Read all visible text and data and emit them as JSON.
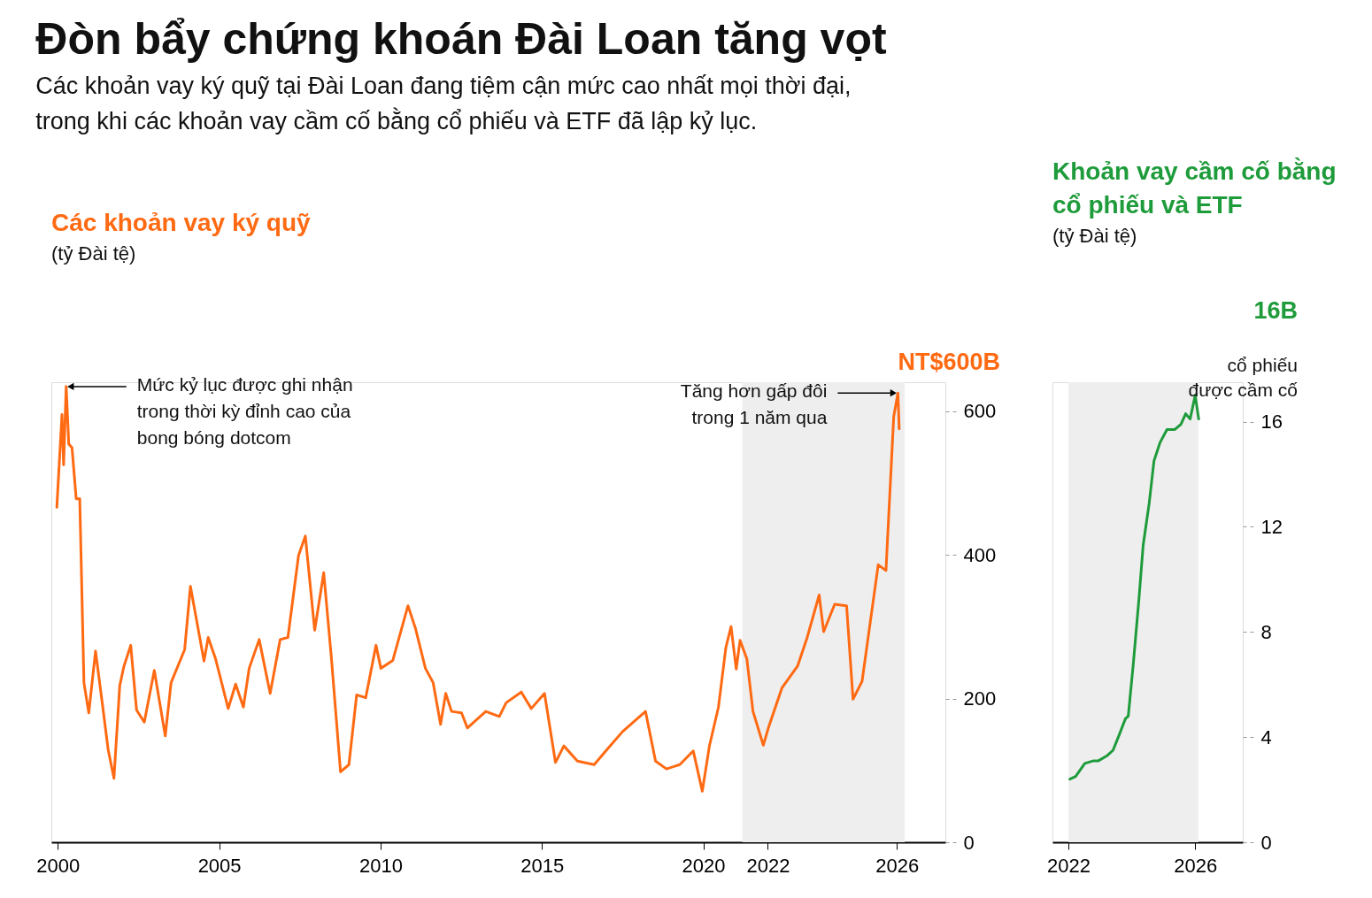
{
  "chart_data": [
    {
      "type": "line",
      "title": "Đòn bẩy chứng khoán Đài Loan tăng vọt",
      "subtitle": "Các khoản vay ký quỹ tại Đài Loan đang tiệm cận mức cao nhất mọi thời đại, trong khi các khoản vay cầm cố bằng cổ phiếu và ETF đã lập kỷ lục.",
      "ylabel": "(tỷ Đài tệ)",
      "x": [
        1999.97,
        2000.13,
        2000.18,
        2000.26,
        2000.34,
        2000.44,
        2000.57,
        2000.68,
        2000.81,
        2000.96,
        2001.17,
        2001.38,
        2001.56,
        2001.74,
        2001.92,
        2002.05,
        2002.26,
        2002.44,
        2002.68,
        2002.99,
        2003.33,
        2003.51,
        2003.93,
        2004.11,
        2004.53,
        2004.66,
        2004.89,
        2005.28,
        2005.51,
        2005.75,
        2005.93,
        2006.24,
        2006.58,
        2006.89,
        2007.13,
        2007.46,
        2007.67,
        2007.96,
        2008.24,
        2008.48,
        2008.76,
        2009.02,
        2009.26,
        2009.54,
        2009.86,
        2010.01,
        2010.38,
        2010.85,
        2011.08,
        2011.39,
        2011.63,
        2011.86,
        2012.02,
        2012.2,
        2012.51,
        2012.69,
        2013.26,
        2013.68,
        2013.89,
        2014.36,
        2014.67,
        2015.08,
        2015.42,
        2015.68,
        2016.1,
        2016.62,
        2016.98,
        2017.5,
        2018.21,
        2018.52,
        2018.86,
        2019.27,
        2019.69,
        2019.97,
        2020.19,
        2020.47,
        2020.7,
        2020.86,
        2021.02,
        2021.14,
        2021.35,
        2021.54,
        2021.86,
        2022.03,
        2022.44,
        2022.92,
        2023.22,
        2023.59,
        2023.73,
        2024.07,
        2024.44,
        2024.64,
        2024.92,
        2025.42,
        2025.66,
        2025.9,
        2026.03,
        2026.07
      ],
      "series": [
        {
          "name": "Các khoản vay ký quỹ",
          "color": "#ff6a13",
          "values": [
            466,
            595,
            525,
            634,
            554,
            549,
            478,
            478,
            222,
            180,
            266,
            193,
            129,
            89,
            218,
            245,
            274,
            184,
            167,
            239,
            148,
            222,
            268,
            356,
            252,
            285,
            255,
            186,
            220,
            188,
            242,
            282,
            207,
            282,
            285,
            399,
            426,
            295,
            375,
            255,
            98,
            108,
            205,
            201,
            274,
            242,
            253,
            329,
            298,
            242,
            222,
            164,
            207,
            182,
            180,
            159,
            182,
            175,
            194,
            209,
            186,
            207,
            111,
            134,
            113,
            108,
            127,
            154,
            182,
            113,
            102,
            108,
            127,
            71,
            134,
            188,
            271,
            300,
            241,
            281,
            255,
            182,
            135,
            161,
            215,
            245,
            285,
            344,
            293,
            331,
            329,
            199,
            224,
            386,
            378,
            592,
            625,
            575
          ]
        }
      ],
      "xlim": [
        1999.8,
        2027.5
      ],
      "xticks": [
        2000,
        2005,
        2010,
        2015,
        2020,
        2022,
        2026
      ],
      "ylim": [
        0,
        640
      ],
      "yticks": [
        0,
        200,
        400,
        600
      ],
      "bands": [
        {
          "axis": "x",
          "from": 2021.21,
          "to": 2026.24,
          "color": "#eeeeee"
        }
      ],
      "annotations": [
        {
          "text": "Mức kỷ lục được ghi nhận trong thời kỳ đỉnh cao của bong bóng dotcom",
          "x": 2000.26,
          "y": 634
        },
        {
          "text": "Tăng hơn gấp đôi trong 1 năm qua",
          "x": 2026.03,
          "y": 625
        },
        "NT$600B"
      ],
      "grid": false,
      "legend": false,
      "marker": "none",
      "line_style": "solid"
    },
    {
      "type": "line",
      "ylabel": "(tỷ Đài tệ)",
      "x": [
        2022.05,
        2022.23,
        2022.52,
        2022.8,
        2022.95,
        2023.23,
        2023.41,
        2023.61,
        2023.8,
        2023.89,
        2024.05,
        2024.23,
        2024.36,
        2024.55,
        2024.7,
        2024.89,
        2025.11,
        2025.36,
        2025.55,
        2025.7,
        2025.84,
        2026.0,
        2026.11
      ],
      "series": [
        {
          "name": "Khoản vay cầm cố bằng cổ phiếu và ETF",
          "color": "#1e9b3a",
          "values": [
            2.4,
            2.5,
            3.0,
            3.1,
            3.1,
            3.3,
            3.5,
            4.1,
            4.7,
            4.8,
            6.8,
            9.3,
            11.3,
            12.9,
            14.5,
            15.2,
            15.7,
            15.7,
            15.9,
            16.3,
            16.1,
            17.0,
            16.1
          ]
        }
      ],
      "xlim": [
        2021.5,
        2027.5
      ],
      "xticks": [
        2022,
        2026
      ],
      "ylim": [
        0,
        17.5
      ],
      "yticks": [
        0,
        4,
        8,
        12,
        16
      ],
      "bands": [
        {
          "axis": "x",
          "from": 2022.0,
          "to": 2026.1,
          "color": "#eeeeee"
        }
      ],
      "annotations": [
        "16B",
        "cổ phiếu được cầm cố"
      ],
      "grid": false,
      "legend": false,
      "marker": "none",
      "line_style": "solid"
    }
  ]
}
